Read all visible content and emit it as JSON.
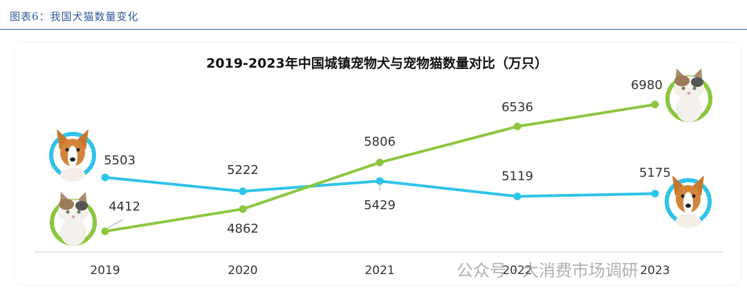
{
  "caption": "图表6：我国犬猫数量变化",
  "watermark": "公众号 · 大消费市场调研",
  "colors": {
    "dog": "#2ec4ea",
    "cat": "#8cc63f",
    "axis": "#d9d9d9",
    "caption": "#2f5d9c"
  },
  "chart_data": {
    "type": "line",
    "title": "2019-2023年中国城镇宠物犬与宠物猫数量对比（万只）",
    "xlabel": "",
    "ylabel": "",
    "categories": [
      "2019",
      "2020",
      "2021",
      "2022",
      "2023"
    ],
    "ylim": [
      4000,
      7200
    ],
    "grid": false,
    "legend": "none",
    "series": [
      {
        "key": "dog",
        "icon": "dog-icon",
        "values": [
          5503,
          5222,
          5429,
          5119,
          5175
        ]
      },
      {
        "key": "cat",
        "icon": "cat-icon",
        "values": [
          4412,
          4862,
          5806,
          6536,
          6980
        ]
      }
    ]
  }
}
